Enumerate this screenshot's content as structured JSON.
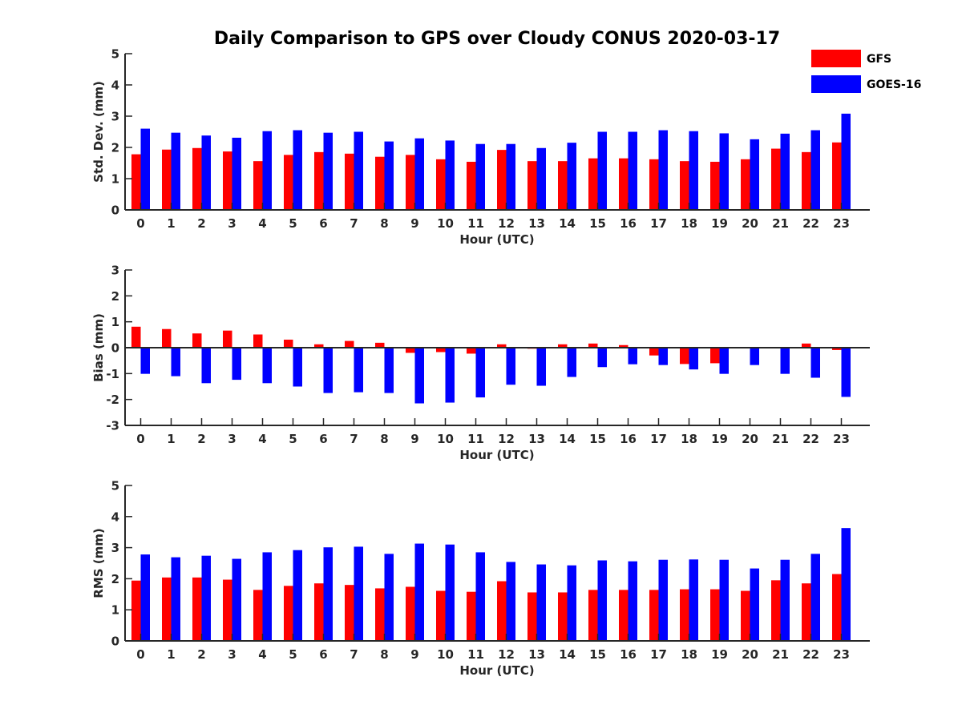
{
  "title": "Daily Comparison to GPS over Cloudy CONUS 2020-03-17",
  "legend": {
    "placement": "top-right",
    "entries": [
      {
        "label": "GFS",
        "color": "#ff0000"
      },
      {
        "label": "GOES-16",
        "color": "#0000ff"
      }
    ]
  },
  "chart_data": [
    {
      "type": "bar",
      "xlabel": "Hour (UTC)",
      "ylabel": "Std. Dev. (mm)",
      "ylim": [
        0,
        5
      ],
      "yticks": [
        0,
        1,
        2,
        3,
        4,
        5
      ],
      "categories": [
        "0",
        "1",
        "2",
        "3",
        "4",
        "5",
        "6",
        "7",
        "8",
        "9",
        "10",
        "11",
        "12",
        "13",
        "14",
        "15",
        "16",
        "17",
        "18",
        "19",
        "20",
        "21",
        "22",
        "23"
      ],
      "series": [
        {
          "name": "GFS",
          "color": "#ff0000",
          "values": [
            1.78,
            1.93,
            1.98,
            1.87,
            1.56,
            1.76,
            1.85,
            1.8,
            1.7,
            1.76,
            1.62,
            1.54,
            1.92,
            1.56,
            1.56,
            1.65,
            1.65,
            1.62,
            1.56,
            1.54,
            1.62,
            1.96,
            1.85,
            2.16
          ]
        },
        {
          "name": "GOES-16",
          "color": "#0000ff",
          "values": [
            2.6,
            2.47,
            2.38,
            2.31,
            2.52,
            2.55,
            2.47,
            2.5,
            2.19,
            2.29,
            2.22,
            2.11,
            2.11,
            1.98,
            2.15,
            2.5,
            2.5,
            2.55,
            2.52,
            2.45,
            2.26,
            2.44,
            2.55,
            3.08
          ]
        }
      ]
    },
    {
      "type": "bar",
      "xlabel": "Hour (UTC)",
      "ylabel": "Bias (mm)",
      "ylim": [
        -3,
        3
      ],
      "yticks": [
        -3,
        -2,
        -1,
        0,
        1,
        2,
        3
      ],
      "categories": [
        "0",
        "1",
        "2",
        "3",
        "4",
        "5",
        "6",
        "7",
        "8",
        "9",
        "10",
        "11",
        "12",
        "13",
        "14",
        "15",
        "16",
        "17",
        "18",
        "19",
        "20",
        "21",
        "22",
        "23"
      ],
      "series": [
        {
          "name": "GFS",
          "color": "#ff0000",
          "values": [
            0.81,
            0.72,
            0.55,
            0.66,
            0.51,
            0.31,
            0.13,
            0.26,
            0.19,
            -0.2,
            -0.17,
            -0.23,
            0.13,
            -0.04,
            0.13,
            0.16,
            0.1,
            -0.3,
            -0.63,
            -0.6,
            -0.03,
            0.0,
            0.16,
            -0.09
          ]
        },
        {
          "name": "GOES-16",
          "color": "#0000ff",
          "values": [
            -1.01,
            -1.1,
            -1.37,
            -1.24,
            -1.37,
            -1.5,
            -1.75,
            -1.72,
            -1.75,
            -2.15,
            -2.12,
            -1.92,
            -1.43,
            -1.47,
            -1.13,
            -0.75,
            -0.64,
            -0.67,
            -0.84,
            -1.01,
            -0.67,
            -1.01,
            -1.16,
            -1.9
          ]
        }
      ]
    },
    {
      "type": "bar",
      "xlabel": "Hour (UTC)",
      "ylabel": "RMS (mm)",
      "ylim": [
        0,
        5
      ],
      "yticks": [
        0,
        1,
        2,
        3,
        4,
        5
      ],
      "categories": [
        "0",
        "1",
        "2",
        "3",
        "4",
        "5",
        "6",
        "7",
        "8",
        "9",
        "10",
        "11",
        "12",
        "13",
        "14",
        "15",
        "16",
        "17",
        "18",
        "19",
        "20",
        "21",
        "22",
        "23"
      ],
      "series": [
        {
          "name": "GFS",
          "color": "#ff0000",
          "values": [
            1.94,
            2.04,
            2.04,
            1.97,
            1.64,
            1.77,
            1.85,
            1.8,
            1.69,
            1.74,
            1.61,
            1.58,
            1.92,
            1.56,
            1.56,
            1.64,
            1.64,
            1.64,
            1.66,
            1.66,
            1.61,
            1.95,
            1.85,
            2.15
          ]
        },
        {
          "name": "GOES-16",
          "color": "#0000ff",
          "values": [
            2.78,
            2.69,
            2.74,
            2.64,
            2.85,
            2.92,
            3.01,
            3.03,
            2.8,
            3.13,
            3.1,
            2.85,
            2.54,
            2.46,
            2.43,
            2.59,
            2.56,
            2.61,
            2.62,
            2.61,
            2.33,
            2.61,
            2.8,
            3.63
          ]
        }
      ]
    }
  ]
}
